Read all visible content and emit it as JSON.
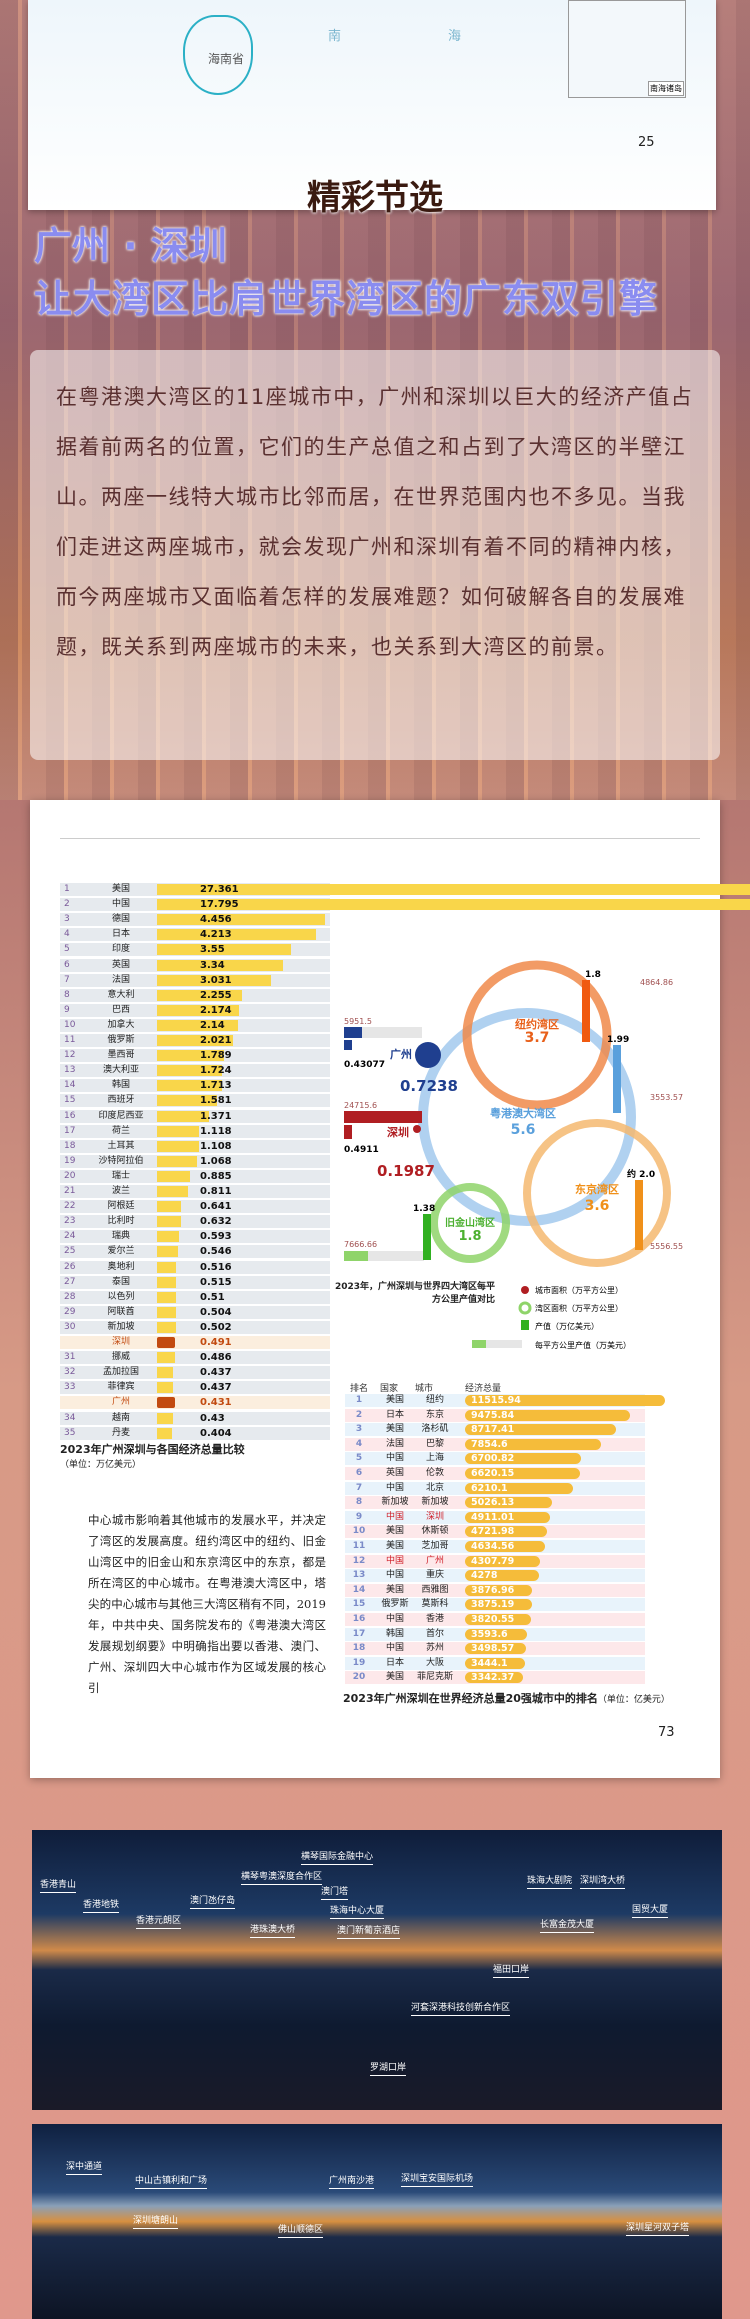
{
  "map_page": {
    "province": "海南省",
    "sea1": "南",
    "sea2": "海",
    "inset_label": "南海诸岛",
    "page_number": "25"
  },
  "header": {
    "section": "精彩节选",
    "cities": "广州 · 深圳",
    "subtitle": "让大湾区比肩世界湾区的广东双引擎"
  },
  "intro": "在粤港澳大湾区的11座城市中，广州和深圳以巨大的经济产值占据着前两名的位置，它们的生产总值之和占到了大湾区的半壁江山。两座一线特大城市比邻而居，在世界范围内也不多见。当我们走进这两座城市，就会发现广州和深圳有着不同的精神内核，而今两座城市又面临着怎样的发展难题？如何破解各自的发展难题，既关系到两座城市的未来，也关系到大湾区的前景。",
  "article": {
    "page_number": "73",
    "body": "中心城市影响着其他城市的发展水平，并决定了湾区的发展高度。纽约湾区中的纽约、旧金山湾区中的旧金山和东京湾区中的东京，都是所在湾区的中心城市。在粤港澳大湾区中，塔尖的中心城市与其他三大湾区稍有不同，2019年，中共中央、国务院发布的《粤港澳大湾区发展规划纲要》中明确指出要以香港、澳门、广州、深圳四大中心城市作为区域发展的核心引"
  },
  "chart_data": [
    {
      "type": "bar",
      "title": "2023年广州深圳与各国经济总量比较",
      "unit": "（单位：万亿美元）",
      "rows": [
        [
          "1",
          "美国",
          27.361
        ],
        [
          "2",
          "中国",
          17.795
        ],
        [
          "3",
          "德国",
          4.456
        ],
        [
          "4",
          "日本",
          4.213
        ],
        [
          "5",
          "印度",
          3.55
        ],
        [
          "6",
          "英国",
          3.34
        ],
        [
          "7",
          "法国",
          3.031
        ],
        [
          "8",
          "意大利",
          2.255
        ],
        [
          "9",
          "巴西",
          2.174
        ],
        [
          "10",
          "加拿大",
          2.14
        ],
        [
          "11",
          "俄罗斯",
          2.021
        ],
        [
          "12",
          "墨西哥",
          1.789
        ],
        [
          "13",
          "澳大利亚",
          1.724
        ],
        [
          "14",
          "韩国",
          1.713
        ],
        [
          "15",
          "西班牙",
          1.581
        ],
        [
          "16",
          "印度尼西亚",
          1.371
        ],
        [
          "17",
          "荷兰",
          1.118
        ],
        [
          "18",
          "土耳其",
          1.108
        ],
        [
          "19",
          "沙特阿拉伯",
          1.068
        ],
        [
          "20",
          "瑞士",
          0.885
        ],
        [
          "21",
          "波兰",
          0.811
        ],
        [
          "22",
          "阿根廷",
          0.641
        ],
        [
          "23",
          "比利时",
          0.632
        ],
        [
          "24",
          "瑞典",
          0.593
        ],
        [
          "25",
          "爱尔兰",
          0.546
        ],
        [
          "26",
          "奥地利",
          0.516
        ],
        [
          "27",
          "泰国",
          0.515
        ],
        [
          "28",
          "以色列",
          0.51
        ],
        [
          "29",
          "阿联酋",
          0.504
        ],
        [
          "30",
          "新加坡",
          0.502
        ],
        [
          "",
          "深圳",
          0.491
        ],
        [
          "31",
          "挪威",
          0.486
        ],
        [
          "32",
          "孟加拉国",
          0.437
        ],
        [
          "33",
          "菲律宾",
          0.437
        ],
        [
          "",
          "广州",
          0.431
        ],
        [
          "34",
          "越南",
          0.43
        ],
        [
          "35",
          "丹麦",
          0.404
        ]
      ]
    },
    {
      "type": "diagram",
      "title": "2023年，广州深圳与世界四大湾区每平方公里产值对比",
      "bays": [
        {
          "name": "纽约湾区",
          "area": "3.7",
          "output": "1.8",
          "per_km2": "4864.86",
          "color": "#f08a4a"
        },
        {
          "name": "粤港澳大湾区",
          "area": "5.6",
          "output": "1.99",
          "per_km2": "3553.57",
          "color": "#9cc6ec"
        },
        {
          "name": "东京湾区",
          "area": "3.6",
          "output": "约 2.0",
          "per_km2": "5556.55",
          "color": "#f5b870"
        },
        {
          "name": "旧金山湾区",
          "area": "1.8",
          "output": "1.38",
          "per_km2": "7666.66",
          "color": "#8fd46a"
        }
      ],
      "cities": [
        {
          "name": "广州",
          "area": "0.7238",
          "output": "0.43077",
          "per_km2": "5951.5",
          "color": "#1f3f8f"
        },
        {
          "name": "深圳",
          "area": "0.1987",
          "output": "0.4911",
          "per_km2": "24715.6",
          "color": "#b01e22"
        }
      ],
      "legend": [
        "城市面积（万平方公里）",
        "湾区面积（万平方公里）",
        "产值（万亿美元）",
        "每平方公里产值（万美元）"
      ]
    },
    {
      "type": "bar",
      "title": "2023年广州深圳在世界经济总量20强城市中的排名",
      "unit": "（单位：亿美元）",
      "headers": [
        "排名",
        "国家",
        "城市",
        "经济总量"
      ],
      "rows": [
        [
          "1",
          "美国",
          "纽约",
          11515.94
        ],
        [
          "2",
          "日本",
          "东京",
          9475.84
        ],
        [
          "3",
          "美国",
          "洛杉矶",
          8717.41
        ],
        [
          "4",
          "法国",
          "巴黎",
          7854.6
        ],
        [
          "5",
          "中国",
          "上海",
          6700.82
        ],
        [
          "6",
          "英国",
          "伦敦",
          6620.15
        ],
        [
          "7",
          "中国",
          "北京",
          6210.1
        ],
        [
          "8",
          "新加坡",
          "新加坡",
          5026.13
        ],
        [
          "9",
          "中国",
          "深圳",
          4911.01
        ],
        [
          "10",
          "美国",
          "休斯顿",
          4721.98
        ],
        [
          "11",
          "美国",
          "芝加哥",
          4634.56
        ],
        [
          "12",
          "中国",
          "广州",
          4307.79
        ],
        [
          "13",
          "中国",
          "重庆",
          4278
        ],
        [
          "14",
          "美国",
          "西雅图",
          3876.96
        ],
        [
          "15",
          "俄罗斯",
          "莫斯科",
          3875.19
        ],
        [
          "16",
          "中国",
          "香港",
          3820.55
        ],
        [
          "17",
          "韩国",
          "首尔",
          3593.6
        ],
        [
          "18",
          "中国",
          "苏州",
          3498.57
        ],
        [
          "19",
          "日本",
          "大阪",
          3444.1
        ],
        [
          "20",
          "美国",
          "菲尼克斯",
          3342.37
        ]
      ]
    }
  ],
  "photo1_labels": [
    "香港青山",
    "香港地铁",
    "香港元朗区",
    "澳门氹仔岛",
    "横琴粤澳深度合作区",
    "港珠澳大桥",
    "横琴国际金融中心",
    "澳门塔",
    "珠海中心大厦",
    "澳门新葡京酒店",
    "珠海大剧院",
    "深圳湾大桥",
    "国贸大厦",
    "长富金茂大厦",
    "福田口岸",
    "河套深港科技创新合作区",
    "罗湖口岸"
  ],
  "photo2_labels": [
    "深中通道",
    "中山古镇利和广场",
    "深圳塘朗山",
    "佛山顺德区",
    "广州南沙港",
    "深圳宝安国际机场",
    "深圳星河双子塔"
  ]
}
